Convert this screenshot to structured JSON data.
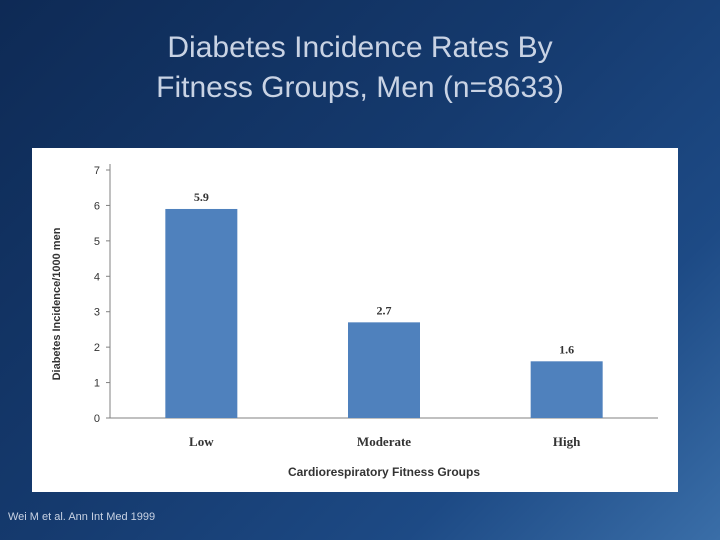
{
  "slide": {
    "title_line1": "Diabetes Incidence Rates By",
    "title_line2": "Fitness Groups, Men (n=8633)",
    "citation": "Wei M et al. Ann Int Med 1999"
  },
  "colors": {
    "bar": "#4f81bd",
    "axis": "#808080",
    "text": "#333333"
  },
  "chart_data": {
    "type": "bar",
    "categories": [
      "Low",
      "Moderate",
      "High"
    ],
    "values": [
      5.9,
      2.7,
      1.6
    ],
    "data_labels": [
      "5.9",
      "2.7",
      "1.6"
    ],
    "xlabel": "Cardiorespiratory Fitness Groups",
    "ylabel": "Diabetes Incidence/1000 men",
    "ylim": [
      0,
      7
    ],
    "yticks": [
      0,
      1,
      2,
      3,
      4,
      5,
      6,
      7
    ],
    "grid": false,
    "legend": "none"
  }
}
